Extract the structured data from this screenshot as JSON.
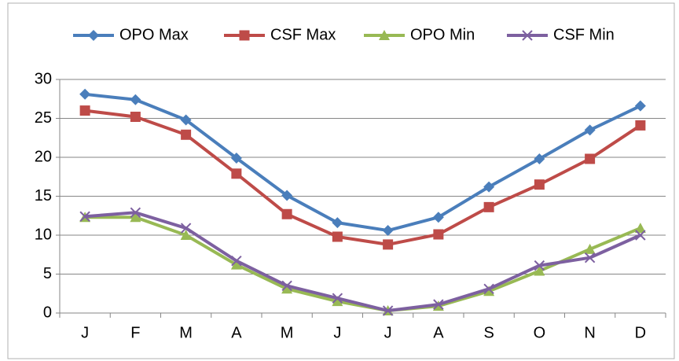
{
  "chart_data": {
    "type": "line",
    "categories": [
      "J",
      "F",
      "M",
      "A",
      "M",
      "J",
      "J",
      "A",
      "S",
      "O",
      "N",
      "D"
    ],
    "series": [
      {
        "name": "OPO Max",
        "color": "#4a7ebb",
        "marker": "diamond",
        "values": [
          28.1,
          27.4,
          24.8,
          19.9,
          15.1,
          11.6,
          10.6,
          12.3,
          16.2,
          19.8,
          23.5,
          26.6
        ]
      },
      {
        "name": "CSF Max",
        "color": "#be4b48",
        "marker": "square",
        "values": [
          26.0,
          25.2,
          22.9,
          17.9,
          12.7,
          9.8,
          8.8,
          10.1,
          13.6,
          16.5,
          19.8,
          24.1
        ]
      },
      {
        "name": "OPO Min",
        "color": "#98b954",
        "marker": "triangle",
        "values": [
          12.3,
          12.3,
          10.0,
          6.2,
          3.1,
          1.5,
          0.3,
          0.9,
          2.8,
          5.4,
          8.2,
          10.9
        ]
      },
      {
        "name": "CSF Min",
        "color": "#7d60a0",
        "marker": "x",
        "values": [
          12.4,
          12.9,
          10.9,
          6.7,
          3.5,
          1.9,
          0.3,
          1.1,
          3.1,
          6.1,
          7.1,
          10.0
        ]
      }
    ],
    "ylim": [
      0,
      30
    ],
    "yticks": [
      0,
      5,
      10,
      15,
      20,
      25,
      30
    ],
    "grid": true,
    "legend": "top"
  }
}
